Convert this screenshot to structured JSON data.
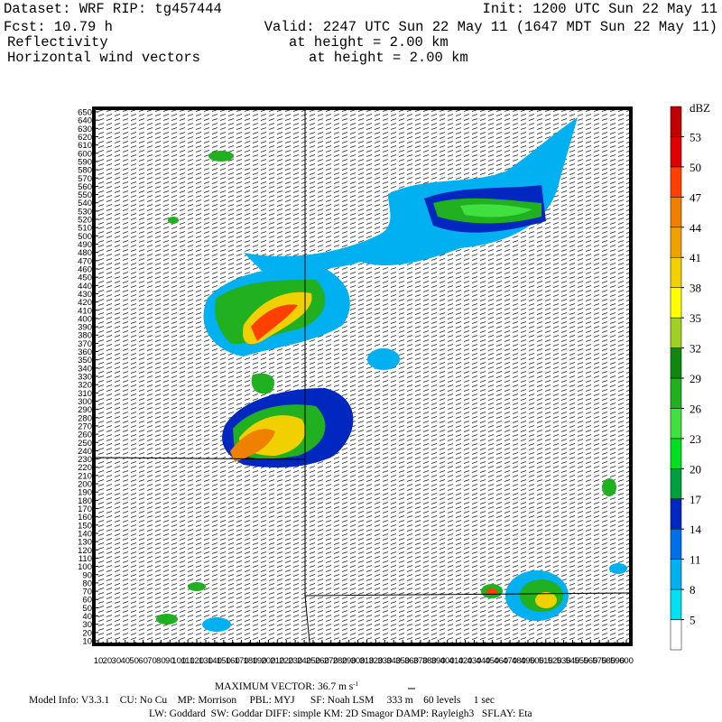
{
  "header": {
    "dataset": "Dataset: WRF  RIP: tg457444",
    "init": "Init: 1200 UTC Sun 22 May 11",
    "fcst": "Fcst:   10.79 h",
    "valid": "Valid: 2247 UTC Sun 22 May 11 (1647 MDT Sun 22 May 11)",
    "field1": "Reflectivity",
    "height1": "at height =   2.00 km",
    "field2": "Horizontal wind vectors",
    "height2": "at height =   2.00 km"
  },
  "axes": {
    "xlim": [
      10,
      600
    ],
    "ylim": [
      10,
      650
    ],
    "xticks": [
      10,
      20,
      30,
      40,
      50,
      60,
      70,
      80,
      90,
      100,
      110,
      120,
      130,
      140,
      150,
      160,
      170,
      180,
      190,
      200,
      210,
      220,
      230,
      240,
      250,
      260,
      270,
      280,
      290,
      300,
      310,
      320,
      330,
      340,
      350,
      360,
      370,
      380,
      390,
      400,
      410,
      420,
      430,
      440,
      450,
      460,
      470,
      480,
      490,
      500,
      510,
      520,
      530,
      540,
      550,
      560,
      570,
      580,
      590,
      600
    ],
    "yticks": [
      10,
      20,
      30,
      40,
      50,
      60,
      70,
      80,
      90,
      100,
      110,
      120,
      130,
      140,
      150,
      160,
      170,
      180,
      190,
      200,
      210,
      220,
      230,
      240,
      250,
      260,
      270,
      280,
      290,
      300,
      310,
      320,
      330,
      340,
      350,
      360,
      370,
      380,
      390,
      400,
      410,
      420,
      430,
      440,
      450,
      460,
      470,
      480,
      490,
      500,
      510,
      520,
      530,
      540,
      550,
      560,
      570,
      580,
      590,
      600,
      610,
      620,
      630,
      640,
      650
    ]
  },
  "colorbar": {
    "unit": "dBZ",
    "levels": [
      5,
      8,
      11,
      14,
      17,
      20,
      23,
      26,
      29,
      32,
      35,
      38,
      41,
      44,
      47,
      50,
      53
    ],
    "colors": [
      "#ffffff",
      "#00e0f0",
      "#00b0f0",
      "#0070e8",
      "#0028c0",
      "#00a040",
      "#00e020",
      "#40e040",
      "#20b020",
      "#108810",
      "#a0d020",
      "#ffff00",
      "#f0d000",
      "#f0a000",
      "#f08000",
      "#ff4000",
      "#e00000",
      "#c00000"
    ]
  },
  "footer": {
    "max_vector": "MAXIMUM VECTOR:  36.7 m s",
    "max_vector_unit_exp": "-1",
    "model_info": "Model Info: V3.3.1    CU: No Cu    MP: Morrison     PBL: MYJ      SF: Noah LSM     333 m    60 levels     1 sec",
    "physics": "LW: Goddard  SW: Goddar DIFF: simple KM: 2D Smagor DAMP: Rayleigh3   SFLAY: Eta"
  }
}
